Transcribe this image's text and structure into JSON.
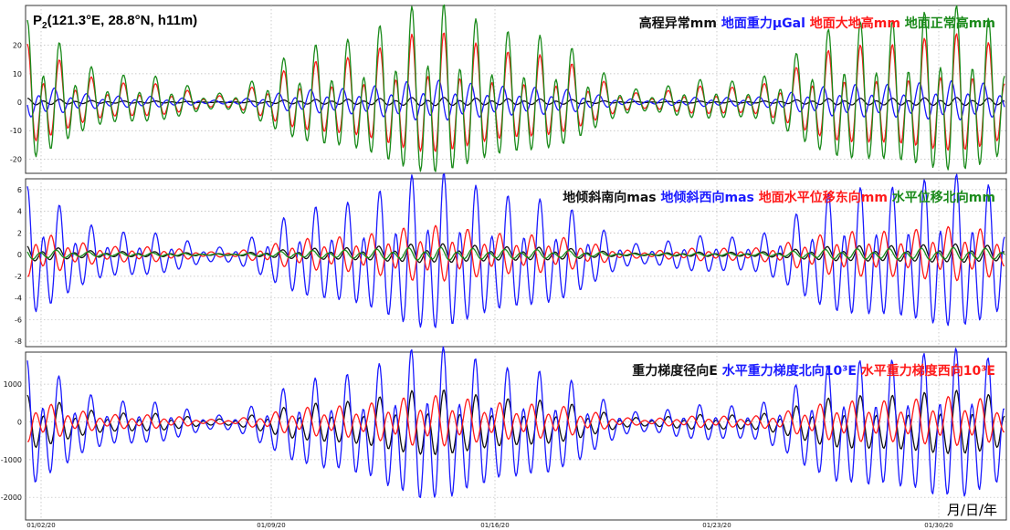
{
  "station": {
    "prefix": "P",
    "subscript": "2",
    "coords": "(121.3°E, 28.8°N, h11m)"
  },
  "x_unit_label": "月/日/年",
  "x_tick_labels": [
    "01/02/20",
    "01/09/20",
    "01/16/20",
    "01/23/20",
    "01/30/20"
  ],
  "colors": {
    "black": "#111111",
    "blue": "#1a1aff",
    "red": "#ff1a1a",
    "green": "#1a8a1a",
    "grid": "#b9b9b9"
  },
  "chart_data": [
    {
      "type": "line",
      "title": "",
      "xlabel": "月/日/年",
      "x_ticks": [
        "01/02/20",
        "01/09/20",
        "01/16/20",
        "01/23/20",
        "01/30/20"
      ],
      "ylim": [
        -25,
        34
      ],
      "yticks": [
        20,
        10,
        0,
        -10,
        -20
      ],
      "grid": true,
      "legend_position": "top-right",
      "legend": [
        {
          "text": "高程异常mm",
          "color": "#111111"
        },
        {
          "text": "地面重力μGal",
          "color": "#1a1aff"
        },
        {
          "text": "地面大地高mm",
          "color": "#ff1a1a"
        },
        {
          "text": "地面正常高mm",
          "color": "#1a8a1a"
        }
      ],
      "series": [
        {
          "name": "高程异常mm",
          "color": "#111111",
          "amplitude": 1.5,
          "phase": 0.0
        },
        {
          "name": "地面重力μGal",
          "color": "#1a1aff",
          "amplitude": 7,
          "phase": 1.9
        },
        {
          "name": "地面大地高mm",
          "color": "#ff1a1a",
          "amplitude": 22,
          "phase": 0.0
        },
        {
          "name": "地面正常高mm",
          "color": "#1a8a1a",
          "amplitude": 31,
          "phase": 0.0
        }
      ]
    },
    {
      "type": "line",
      "title": "",
      "xlabel": "月/日/年",
      "x_ticks": [
        "01/02/20",
        "01/09/20",
        "01/16/20",
        "01/23/20",
        "01/30/20"
      ],
      "ylim": [
        -8.5,
        7
      ],
      "yticks": [
        6,
        4,
        2,
        0,
        -2,
        -4,
        -6,
        -8
      ],
      "grid": true,
      "legend_position": "top-right",
      "legend": [
        {
          "text": "地倾斜南向mas",
          "color": "#111111"
        },
        {
          "text": "地倾斜西向mas",
          "color": "#1a1aff"
        },
        {
          "text": "地面水平位移东向mm",
          "color": "#ff1a1a"
        },
        {
          "text": "水平位移北向mm",
          "color": "#1a8a1a"
        }
      ],
      "series": [
        {
          "name": "地倾斜南向mas",
          "color": "#111111",
          "amplitude": 0.9,
          "phase": 0.4
        },
        {
          "name": "地倾斜西向mas",
          "color": "#1a1aff",
          "amplitude": 7.5,
          "phase": 0.0,
          "offset": -0.8
        },
        {
          "name": "地面水平位移东向mm",
          "color": "#ff1a1a",
          "amplitude": 2.5,
          "phase": 3.1
        },
        {
          "name": "水平位移北向mm",
          "color": "#1a8a1a",
          "amplitude": 0.6,
          "phase": 1.2
        }
      ]
    },
    {
      "type": "line",
      "title": "",
      "xlabel": "月/日/年",
      "x_ticks": [
        "01/02/20",
        "01/09/20",
        "01/16/20",
        "01/23/20",
        "01/30/20"
      ],
      "ylim": [
        -2600,
        1850
      ],
      "yticks": [
        1000,
        0,
        -1000,
        -2000
      ],
      "grid": true,
      "legend_position": "top-right",
      "legend": [
        {
          "text": "重力梯度径向E",
          "color": "#111111"
        },
        {
          "text": "水平重力梯度北向10³E",
          "color": "#1a1aff"
        },
        {
          "text": "水平重力梯度西向10³E",
          "color": "#ff1a1a"
        }
      ],
      "series": [
        {
          "name": "重力梯度径向E",
          "color": "#111111",
          "amplitude": 900,
          "phase": 0.0,
          "offset": -150
        },
        {
          "name": "水平重力梯度北向10³E",
          "color": "#1a1aff",
          "amplitude": 2100,
          "phase": 0.2,
          "offset": -350
        },
        {
          "name": "水平重力梯度西向10³E",
          "color": "#ff1a1a",
          "amplitude": 650,
          "phase": 3.1
        }
      ]
    }
  ]
}
